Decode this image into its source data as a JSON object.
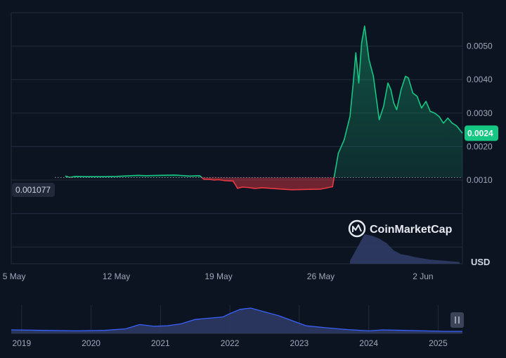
{
  "chart_data": {
    "type": "line",
    "unit": "USD",
    "baseline_label": "0.001077",
    "baseline": 0.001077,
    "current_price_label": "0.0024",
    "current_price": 0.0024,
    "watermark": "CoinMarketCap",
    "ylim": [
      -0.0015,
      0.006
    ],
    "y_ticks": [
      {
        "label": "0.0050",
        "value": 0.005
      },
      {
        "label": "0.0040",
        "value": 0.004
      },
      {
        "label": "0.0030",
        "value": 0.003
      },
      {
        "label": "0.0020",
        "value": 0.002
      },
      {
        "label": "0.0010",
        "value": 0.001
      }
    ],
    "x_ticks": [
      {
        "label": "5 May",
        "day": 5
      },
      {
        "label": "12 May",
        "day": 12
      },
      {
        "label": "19 May",
        "day": 19
      },
      {
        "label": "26 May",
        "day": 26
      },
      {
        "label": "2 Jun",
        "day": 33
      }
    ],
    "xlim_days": [
      4.8,
      35.7
    ],
    "grid": true,
    "colors": {
      "up": "#16c784",
      "down": "#ea3943",
      "volume": "#2f3b66",
      "background": "#0d1421"
    },
    "series": [
      {
        "x_days": [
          8.5,
          8.8,
          9.2,
          10,
          11,
          12,
          13,
          13.5,
          14,
          15,
          16,
          17,
          17.7,
          18,
          18.4,
          18.7,
          19,
          19.5,
          20,
          20.3,
          20.6,
          21,
          21.5,
          22,
          23,
          24,
          25,
          26,
          26.8,
          27.2,
          27.6,
          28.0,
          28.2,
          28.4,
          28.6,
          28.8,
          29.0,
          29.3,
          29.6,
          30.0,
          30.3,
          30.6,
          30.8,
          31.0,
          31.2,
          31.5,
          31.8,
          32.0,
          32.3,
          32.6,
          32.9,
          33.2,
          33.5,
          33.8,
          34.1,
          34.4,
          34.7,
          35.0,
          35.3,
          35.7
        ],
        "y": [
          0.00112,
          0.00108,
          0.00111,
          0.0011,
          0.0011,
          0.00111,
          0.00113,
          0.00114,
          0.00113,
          0.00114,
          0.00115,
          0.00112,
          0.00113,
          0.00102,
          0.00102,
          0.001,
          0.00101,
          0.00098,
          0.00097,
          0.00075,
          0.00079,
          0.00078,
          0.00075,
          0.00077,
          0.00074,
          0.00071,
          0.00072,
          0.00073,
          0.0008,
          0.0018,
          0.0022,
          0.0029,
          0.0038,
          0.0048,
          0.0039,
          0.0051,
          0.0056,
          0.0046,
          0.0041,
          0.0028,
          0.0032,
          0.0039,
          0.0037,
          0.0033,
          0.0031,
          0.0037,
          0.0041,
          0.00405,
          0.0036,
          0.0035,
          0.00315,
          0.00335,
          0.00305,
          0.003,
          0.0029,
          0.0027,
          0.00285,
          0.0027,
          0.00262,
          0.0024
        ]
      }
    ],
    "volume": {
      "x_days": [
        28.0,
        28.5,
        29.0,
        29.5,
        30.0,
        30.5,
        31.0,
        31.5,
        32.0,
        32.5,
        33.0,
        33.5,
        34.0,
        34.5,
        35.0,
        35.5
      ],
      "relative": [
        0.1,
        0.55,
        1.0,
        0.95,
        0.85,
        0.7,
        0.45,
        0.32,
        0.28,
        0.22,
        0.18,
        0.14,
        0.12,
        0.1,
        0.08,
        0.06
      ]
    },
    "navigator": {
      "year_ticks": [
        "2019",
        "2020",
        "2021",
        "2022",
        "2023",
        "2024",
        "2025"
      ],
      "year_positions": [
        2019,
        2020,
        2021,
        2022,
        2023,
        2024,
        2025
      ],
      "x_years": [
        2018.85,
        2019.3,
        2019.8,
        2020.2,
        2020.5,
        2020.7,
        2020.9,
        2021.1,
        2021.3,
        2021.5,
        2021.7,
        2021.9,
        2022.0,
        2022.15,
        2022.3,
        2022.5,
        2022.7,
        2022.9,
        2023.1,
        2023.4,
        2023.7,
        2024.0,
        2024.2,
        2024.5,
        2024.8,
        2025.1,
        2025.35
      ],
      "relative": [
        0.14,
        0.12,
        0.1,
        0.12,
        0.18,
        0.35,
        0.28,
        0.3,
        0.38,
        0.55,
        0.6,
        0.65,
        0.78,
        0.95,
        1.0,
        0.85,
        0.7,
        0.5,
        0.3,
        0.22,
        0.15,
        0.1,
        0.14,
        0.12,
        0.1,
        0.08,
        0.08
      ]
    }
  }
}
